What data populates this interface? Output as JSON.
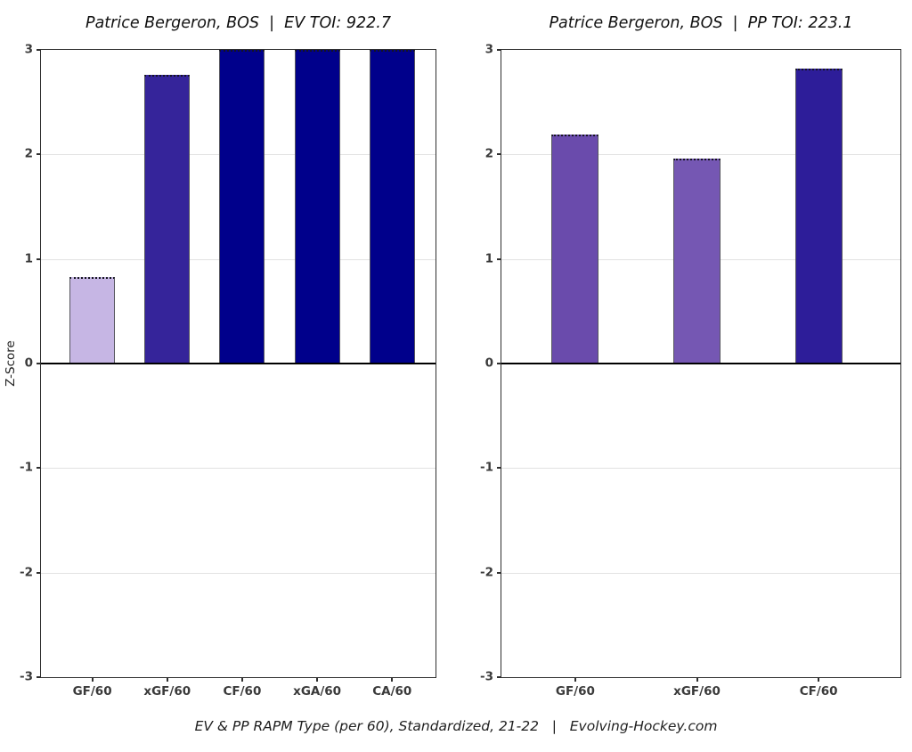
{
  "figure": {
    "background": "#ffffff",
    "ylabel": "Z-Score",
    "caption": "EV & PP RAPM Type (per 60), Standardized, 21-22   |   Evolving-Hockey.com",
    "source_label": "Evolving-Hockey.com",
    "season_label": "21-22"
  },
  "chart_data": [
    {
      "type": "bar",
      "title": "Patrice Bergeron, BOS  |  EV TOI: 922.7",
      "player": "Patrice Bergeron",
      "team": "BOS",
      "strength": "EV",
      "toi": 922.7,
      "categories": [
        "GF/60",
        "xGF/60",
        "CF/60",
        "xGA/60",
        "CA/60"
      ],
      "values": [
        0.83,
        2.76,
        3.0,
        3.0,
        3.0
      ],
      "colors": [
        "#c6b6e4",
        "#35249a",
        "#00008b",
        "#00008b",
        "#00008b"
      ],
      "ylabel": "Z-Score",
      "ylim": [
        -3,
        3
      ],
      "yticks": [
        3,
        2,
        1,
        0,
        -1,
        -2,
        -3
      ],
      "grid": true,
      "legend": "none",
      "bar_centers": [
        0.13,
        0.32,
        0.51,
        0.7,
        0.89
      ],
      "bar_width_frac": 0.115
    },
    {
      "type": "bar",
      "title": "Patrice Bergeron, BOS  |  PP TOI: 223.1",
      "player": "Patrice Bergeron",
      "team": "BOS",
      "strength": "PP",
      "toi": 223.1,
      "categories": [
        "GF/60",
        "xGF/60",
        "CF/60"
      ],
      "values": [
        2.19,
        1.96,
        2.82
      ],
      "colors": [
        "#6a4bac",
        "#7557b3",
        "#2d1d99"
      ],
      "ylabel": "Z-Score",
      "ylim": [
        -3,
        3
      ],
      "yticks": [
        3,
        2,
        1,
        0,
        -1,
        -2,
        -3
      ],
      "grid": true,
      "legend": "none",
      "bar_centers": [
        0.185,
        0.49,
        0.795
      ],
      "bar_width_frac": 0.118
    }
  ]
}
